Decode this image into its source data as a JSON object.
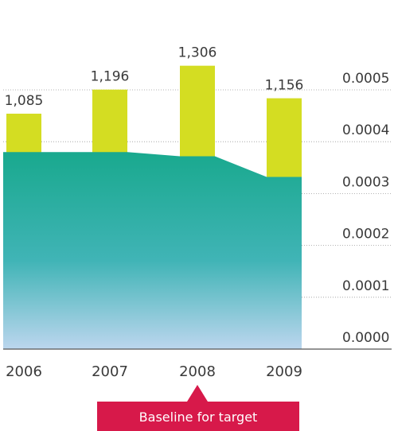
{
  "chart_data": {
    "type": "bar",
    "categories": [
      "2006",
      "2007",
      "2008",
      "2009"
    ],
    "bar_values": [
      1085,
      1196,
      1306,
      1156
    ],
    "bar_labels": [
      "1,085",
      "1,196",
      "1,306",
      "1,156"
    ],
    "area_values": [
      0.00038,
      0.00038,
      0.000372,
      0.000332
    ],
    "y_right": {
      "ticks": [
        "0.0005",
        "0.0004",
        "0.0003",
        "0.0002",
        "0.0001",
        "0.0000"
      ],
      "range": [
        0,
        0.0005
      ]
    },
    "grid": true,
    "annotation": {
      "text": "Baseline for target",
      "category": "2008"
    },
    "colors": {
      "bar": "#d4dd22",
      "area_top": "#19a98e",
      "area_mid": "#3fb3b3",
      "area_bottom": "#b9d3ec",
      "annotation": "#d7194a",
      "text": "#3a3a3a",
      "grid": "#9a9a9a",
      "axis": "#555555"
    }
  }
}
